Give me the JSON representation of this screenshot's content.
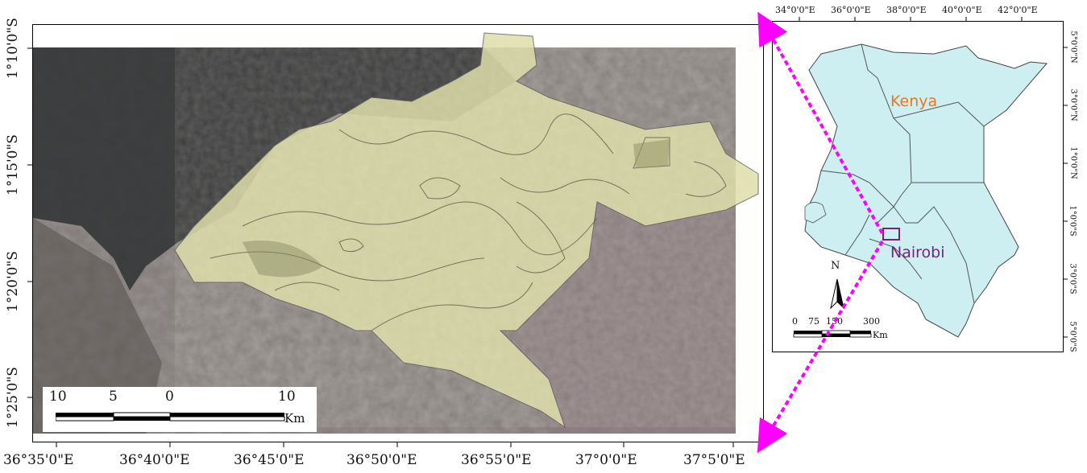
{
  "main_map": {
    "x_ticks": [
      "36°35'0\"E",
      "36°40'0\"E",
      "36°45'0\"E",
      "36°50'0\"E",
      "36°55'0\"E",
      "37°0'0\"E",
      "37°5'0\"E"
    ],
    "y_ticks": [
      "1°10'0\"S",
      "1°15'0\"S",
      "1°20'0\"S",
      "1°25'0\"S"
    ],
    "scale_bar": {
      "labels": [
        "10",
        "5",
        "0",
        "10"
      ],
      "unit": "Km"
    }
  },
  "inset_map": {
    "x_ticks": [
      "34°0'0\"E",
      "36°0'0\"E",
      "38°0'0\"E",
      "40°0'0\"E",
      "42°0'0\"E"
    ],
    "y_ticks": [
      "5°0'0\"N",
      "3°0'0\"N",
      "1°0'0\"N",
      "1°0'0\"S",
      "3°0'0\"S",
      "5°0'0\"S"
    ],
    "country_label": "Kenya",
    "city_label": "Nairobi",
    "north_label": "N",
    "scale_bar": {
      "labels": [
        "0",
        "75",
        "150",
        "300"
      ],
      "unit": "Km"
    }
  },
  "colors": {
    "kenya_fill": "#cdeff2",
    "kenya_label": "#e87722",
    "nairobi_label": "#7a1f7a",
    "connector": "#ff00ff",
    "study_area": "#dcdca6"
  }
}
